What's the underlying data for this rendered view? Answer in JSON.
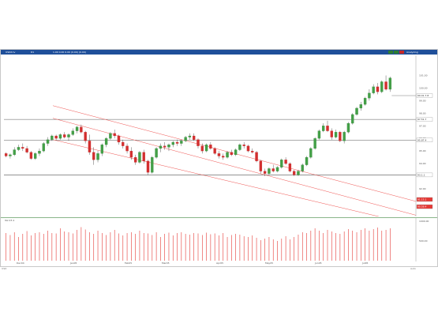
{
  "window": {
    "symbol": "USDX.tv",
    "timeframe": "D1",
    "ohlc_text": "1.00  0.00  0.00  (0.00) (0.00)",
    "right_label": "Analyzing"
  },
  "price_levels": [
    {
      "label": "97.51.7",
      "value": 97.51,
      "color": "#333333",
      "bg": "#ffffff"
    },
    {
      "label": "95.87.4",
      "value": 95.87,
      "color": "#333333",
      "bg": "#ffffff"
    },
    {
      "label": "93.1.1",
      "value": 93.1,
      "color": "#333333",
      "bg": "#ffffff"
    },
    {
      "label": "91.15.1",
      "value": 91.15,
      "color": "#ffffff",
      "bg": "#e53935"
    },
    {
      "label": "90.58.4",
      "value": 90.58,
      "color": "#ffffff",
      "bg": "#e53935"
    }
  ],
  "current_price": {
    "label": "99.01.7.8",
    "value": 99.4
  },
  "yaxis_ticks": [
    "101.00",
    "100.00",
    "99.00",
    "98.00",
    "97.00",
    "96.00",
    "95.00",
    "94.00",
    "93.00",
    "92.00"
  ],
  "xaxis_ticks": [
    "Dec04",
    "Jan05",
    "Feb05",
    "Mar05",
    "Apr05",
    "May05",
    "Jun05",
    "Jul05"
  ],
  "volume": {
    "label": "Vol 17.1",
    "ticks": [
      "1000.00",
      "500.00"
    ]
  },
  "status": {
    "left": "USD",
    "right": "Auto"
  },
  "chart_data": {
    "type": "candlestick",
    "ylim": [
      89.8,
      102.6
    ],
    "candles": [
      [
        94.8,
        94.9,
        94.5,
        94.6
      ],
      [
        94.6,
        94.8,
        94.4,
        94.7
      ],
      [
        94.7,
        95.3,
        94.6,
        95.1
      ],
      [
        95.1,
        95.5,
        95.0,
        95.3
      ],
      [
        95.3,
        95.6,
        95.0,
        95.2
      ],
      [
        95.2,
        95.4,
        94.8,
        94.9
      ],
      [
        94.9,
        95.0,
        94.3,
        94.4
      ],
      [
        94.4,
        94.9,
        94.3,
        94.8
      ],
      [
        94.8,
        95.2,
        94.6,
        95.0
      ],
      [
        95.0,
        95.7,
        94.9,
        95.6
      ],
      [
        95.6,
        96.1,
        95.4,
        95.9
      ],
      [
        95.9,
        96.3,
        95.8,
        96.2
      ],
      [
        96.2,
        96.3,
        95.9,
        96.0
      ],
      [
        96.0,
        96.4,
        95.9,
        96.3
      ],
      [
        96.3,
        96.5,
        96.0,
        96.1
      ],
      [
        96.1,
        96.4,
        95.8,
        96.3
      ],
      [
        96.3,
        96.8,
        96.2,
        96.6
      ],
      [
        96.6,
        97.0,
        96.4,
        96.9
      ],
      [
        96.9,
        97.1,
        96.4,
        96.5
      ],
      [
        96.5,
        96.6,
        95.6,
        95.8
      ],
      [
        95.8,
        96.3,
        94.7,
        94.9
      ],
      [
        94.9,
        95.3,
        93.9,
        94.3
      ],
      [
        94.3,
        95.0,
        94.1,
        94.8
      ],
      [
        94.8,
        95.6,
        94.6,
        95.5
      ],
      [
        95.5,
        96.1,
        95.3,
        96.0
      ],
      [
        96.0,
        96.5,
        95.9,
        96.4
      ],
      [
        96.4,
        96.7,
        96.0,
        96.2
      ],
      [
        96.2,
        96.3,
        95.5,
        95.7
      ],
      [
        95.7,
        95.9,
        95.2,
        95.4
      ],
      [
        95.4,
        95.6,
        94.8,
        95.0
      ],
      [
        95.0,
        95.3,
        94.3,
        94.5
      ],
      [
        94.5,
        94.7,
        93.9,
        94.1
      ],
      [
        94.1,
        95.0,
        94.0,
        94.9
      ],
      [
        94.9,
        95.1,
        94.0,
        94.2
      ],
      [
        94.2,
        94.3,
        93.1,
        93.3
      ],
      [
        93.3,
        94.6,
        93.2,
        94.5
      ],
      [
        94.5,
        95.3,
        94.4,
        95.2
      ],
      [
        95.2,
        95.6,
        94.9,
        95.4
      ],
      [
        95.4,
        95.7,
        95.1,
        95.3
      ],
      [
        95.3,
        95.6,
        95.0,
        95.5
      ],
      [
        95.5,
        95.8,
        95.3,
        95.7
      ],
      [
        95.7,
        95.9,
        95.4,
        95.6
      ],
      [
        95.6,
        95.9,
        95.4,
        95.8
      ],
      [
        95.8,
        96.2,
        95.7,
        96.1
      ],
      [
        96.1,
        96.4,
        95.9,
        96.2
      ],
      [
        96.2,
        96.4,
        95.8,
        95.9
      ],
      [
        95.9,
        96.0,
        95.2,
        95.4
      ],
      [
        95.4,
        95.6,
        94.8,
        95.0
      ],
      [
        95.0,
        95.6,
        94.9,
        95.5
      ],
      [
        95.5,
        95.7,
        95.1,
        95.2
      ],
      [
        95.2,
        95.3,
        94.7,
        94.8
      ],
      [
        94.8,
        95.0,
        94.4,
        94.6
      ],
      [
        94.6,
        94.8,
        94.3,
        94.5
      ],
      [
        94.5,
        95.0,
        94.4,
        94.9
      ],
      [
        94.9,
        95.1,
        94.6,
        94.7
      ],
      [
        94.7,
        95.2,
        94.6,
        95.1
      ],
      [
        95.1,
        95.6,
        95.0,
        95.5
      ],
      [
        95.5,
        95.7,
        95.2,
        95.4
      ],
      [
        95.4,
        95.5,
        94.9,
        95.0
      ],
      [
        95.0,
        95.2,
        94.8,
        94.9
      ],
      [
        94.9,
        95.0,
        94.1,
        94.2
      ],
      [
        94.2,
        94.3,
        93.2,
        93.4
      ],
      [
        93.4,
        93.6,
        93.0,
        93.2
      ],
      [
        93.2,
        93.7,
        93.1,
        93.6
      ],
      [
        93.6,
        93.9,
        93.3,
        93.4
      ],
      [
        93.4,
        93.8,
        93.3,
        93.7
      ],
      [
        93.7,
        94.4,
        93.6,
        94.3
      ],
      [
        94.3,
        94.5,
        93.9,
        94.0
      ],
      [
        94.0,
        94.1,
        93.3,
        93.4
      ],
      [
        93.4,
        93.5,
        93.0,
        93.1
      ],
      [
        93.1,
        93.5,
        93.0,
        93.4
      ],
      [
        93.4,
        94.0,
        93.3,
        93.9
      ],
      [
        93.9,
        94.6,
        93.8,
        94.5
      ],
      [
        94.5,
        95.3,
        94.4,
        95.2
      ],
      [
        95.2,
        96.1,
        95.1,
        96.0
      ],
      [
        96.0,
        96.7,
        95.9,
        96.6
      ],
      [
        96.6,
        97.2,
        96.5,
        97.0
      ],
      [
        97.0,
        97.4,
        96.5,
        96.6
      ],
      [
        96.6,
        96.8,
        95.9,
        96.1
      ],
      [
        96.1,
        96.7,
        96.0,
        96.5
      ],
      [
        96.5,
        96.6,
        95.7,
        95.8
      ],
      [
        95.8,
        96.6,
        95.6,
        96.5
      ],
      [
        96.5,
        97.3,
        96.4,
        97.2
      ],
      [
        97.2,
        98.0,
        97.1,
        97.9
      ],
      [
        97.9,
        98.5,
        97.8,
        98.4
      ],
      [
        98.4,
        98.9,
        98.2,
        98.7
      ],
      [
        98.7,
        99.3,
        98.6,
        99.2
      ],
      [
        99.2,
        99.9,
        99.0,
        99.6
      ],
      [
        99.6,
        100.3,
        99.5,
        100.1
      ],
      [
        100.1,
        100.4,
        99.5,
        99.7
      ],
      [
        99.7,
        100.6,
        99.6,
        100.5
      ],
      [
        100.5,
        101.0,
        99.8,
        99.9
      ],
      [
        99.9,
        100.9,
        99.7,
        100.8
      ]
    ],
    "volumes": [
      700,
      650,
      720,
      600,
      680,
      750,
      640,
      700,
      720,
      680,
      760,
      700,
      690,
      820,
      740,
      720,
      690,
      780,
      850,
      790,
      720,
      680,
      760,
      700,
      650,
      720,
      780,
      690,
      640,
      700,
      720,
      680,
      760,
      700,
      690,
      650,
      720,
      600,
      680,
      710,
      640,
      700,
      720,
      680,
      660,
      700,
      690,
      650,
      710,
      670,
      690,
      640,
      700,
      600,
      650,
      680,
      660,
      620,
      600,
      640,
      580,
      520,
      560,
      600,
      540,
      500,
      560,
      620,
      540,
      600,
      660,
      720,
      700,
      760,
      820,
      760,
      700,
      780,
      740,
      700,
      680,
      740,
      800,
      760,
      720,
      780,
      820,
      760,
      800,
      840,
      760,
      780,
      820
    ],
    "channel_lines": [
      {
        "from": [
          0,
          98.6
        ],
        "to": [
          92,
          91.0
        ]
      },
      {
        "from": [
          0,
          97.6
        ],
        "to": [
          92,
          89.9
        ]
      },
      {
        "from": [
          0,
          95.9
        ],
        "to": [
          92,
          89.1
        ]
      }
    ],
    "horizontal_lines": [
      97.51,
      95.87,
      93.1
    ]
  }
}
